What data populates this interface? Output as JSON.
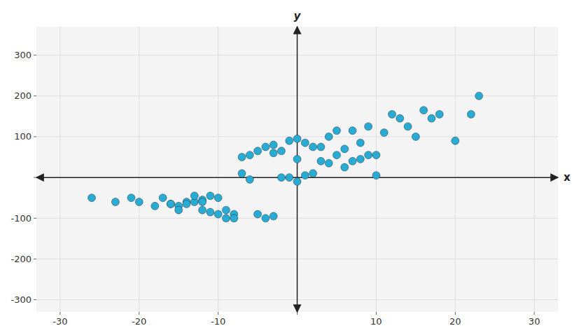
{
  "chart_data": {
    "type": "scatter",
    "xlabel": "x",
    "ylabel": "y",
    "x": [
      -26,
      -23,
      -21,
      -20,
      -18,
      -17,
      -16,
      -16,
      -15,
      -15,
      -14,
      -14,
      -13,
      -13,
      -12,
      -12,
      -12,
      -11,
      -11,
      -10,
      -10,
      -9,
      -9,
      -8,
      -8,
      -7,
      -7,
      -6,
      -6,
      -5,
      -5,
      -4,
      -4,
      -3,
      -3,
      -3,
      -2,
      -2,
      -1,
      -1,
      0,
      0,
      0,
      1,
      1,
      2,
      2,
      3,
      3,
      4,
      4,
      5,
      5,
      6,
      6,
      7,
      7,
      8,
      8,
      9,
      9,
      10,
      10,
      11,
      12,
      13,
      14,
      15,
      16,
      17,
      18,
      20,
      22,
      23
    ],
    "values": [
      -50,
      -60,
      -50,
      -60,
      -70,
      -50,
      -65,
      -65,
      -70,
      -80,
      -60,
      -65,
      -60,
      -45,
      -55,
      -60,
      -80,
      -45,
      -85,
      -90,
      -50,
      -80,
      -100,
      -90,
      -100,
      50,
      10,
      55,
      -5,
      65,
      -90,
      75,
      -100,
      80,
      60,
      -95,
      65,
      0,
      90,
      0,
      95,
      45,
      -10,
      85,
      5,
      75,
      10,
      75,
      40,
      100,
      35,
      115,
      55,
      70,
      25,
      115,
      40,
      85,
      45,
      125,
      55,
      55,
      5,
      110,
      155,
      145,
      125,
      100,
      165,
      145,
      155,
      90,
      155,
      200
    ],
    "color": "#29ABD4",
    "xlim": [
      -33,
      33
    ],
    "ylim": [
      -330,
      370
    ],
    "xticks": [
      -30,
      -20,
      -10,
      {
        "value": 0,
        "label": null
      },
      10,
      20,
      30
    ],
    "yticks": [
      -300,
      -200,
      -100,
      {
        "value": 0,
        "label": null
      },
      100,
      200,
      300
    ],
    "grid": true
  }
}
